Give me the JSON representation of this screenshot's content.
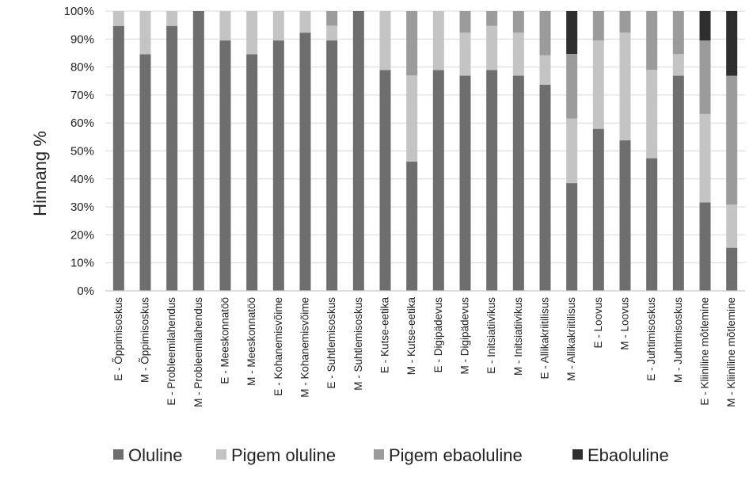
{
  "chart_data": {
    "type": "bar",
    "stacked": "percent",
    "ylabel": "Hinnang %",
    "ylim": [
      0,
      100
    ],
    "yticks": [
      "0%",
      "10%",
      "20%",
      "30%",
      "40%",
      "50%",
      "60%",
      "70%",
      "80%",
      "90%",
      "100%"
    ],
    "grid": true,
    "legend_position": "bottom",
    "categories": [
      "E - Õppimisoskus",
      "M - Õppimisoskus",
      "E - Probleemilahendus",
      "M - Probleemilahendus",
      "E - Meeskonnatöö",
      "M - Meeskonnatöö",
      "E - Kohanemisvõime",
      "M - Kohanemisvõime",
      "E - Suhtlemisoskus",
      "M - Suhtlemisoskus",
      "E - Kutse-eetika",
      "M - Kutse-eetika",
      "E - Digipädevus",
      "M - Digipädevus",
      "E - Initsiatiivikus",
      "M - Initsiatiivikus",
      "E - Allikakriitilisus",
      "M - Allikakriitilisus",
      "E - Loovus",
      "M - Loovus",
      "E - Juhtimisoskus",
      "M - Juhtimisoskus",
      "E - Kliiniline mõtlemine",
      "M - Kliiniline mõtlemine"
    ],
    "series": [
      {
        "name": "Oluline",
        "color": "#6e6e6e",
        "values": [
          94.7,
          84.6,
          94.7,
          100,
          89.5,
          84.6,
          89.5,
          92.3,
          89.5,
          100,
          78.9,
          46.2,
          78.9,
          76.9,
          78.9,
          76.9,
          73.7,
          38.5,
          57.9,
          53.8,
          47.4,
          76.9,
          31.6,
          15.4
        ]
      },
      {
        "name": "Pigem oluline",
        "color": "#c4c4c4",
        "values": [
          5.3,
          15.4,
          5.3,
          0,
          10.5,
          15.4,
          10.5,
          7.7,
          5.3,
          0,
          21.1,
          30.8,
          21.1,
          15.4,
          15.8,
          15.4,
          10.5,
          23.1,
          31.6,
          38.5,
          31.6,
          7.7,
          31.6,
          15.4
        ]
      },
      {
        "name": "Pigem ebaoluline",
        "color": "#9b9b9b",
        "values": [
          0,
          0,
          0,
          0,
          0,
          0,
          0,
          0,
          5.2,
          0,
          0,
          23.0,
          0,
          7.7,
          5.3,
          7.7,
          15.8,
          23.1,
          10.5,
          7.7,
          21.0,
          15.4,
          26.3,
          46.1
        ]
      },
      {
        "name": "Ebaoluline",
        "color": "#2e2e2e",
        "values": [
          0,
          0,
          0,
          0,
          0,
          0,
          0,
          0,
          0,
          0,
          0,
          0,
          0,
          0,
          0,
          0,
          0,
          15.3,
          0,
          0,
          0,
          0,
          10.5,
          23.1
        ]
      }
    ]
  }
}
